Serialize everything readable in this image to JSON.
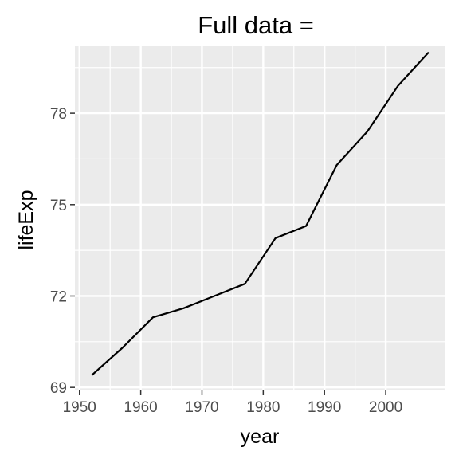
{
  "chart_data": {
    "type": "line",
    "title": "Full data =",
    "xlabel": "year",
    "ylabel": "lifeExp",
    "xlim": [
      1949.25,
      2009.75
    ],
    "ylim": [
      68.9,
      80.2
    ],
    "x_ticks": [
      1950,
      1960,
      1970,
      1980,
      1990,
      2000
    ],
    "y_ticks": [
      69,
      72,
      75,
      78
    ],
    "grid": true,
    "legend": "none",
    "colors": {
      "panel_background": "#ebebeb",
      "grid": "#ffffff",
      "line": "#000000",
      "tick_text": "#4d4d4d",
      "tick_mark": "#333333"
    },
    "series": [
      {
        "x": [
          1952,
          1957,
          1962,
          1967,
          1972,
          1977,
          1982,
          1987,
          1992,
          1997,
          2002,
          2007
        ],
        "values": [
          69.4,
          70.3,
          71.3,
          71.6,
          72.0,
          72.4,
          73.9,
          74.3,
          76.3,
          77.4,
          78.9,
          80.0
        ]
      }
    ]
  }
}
